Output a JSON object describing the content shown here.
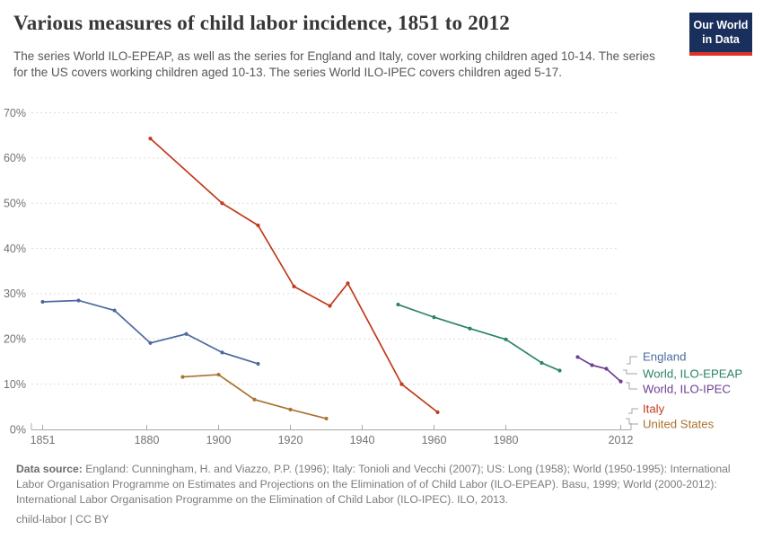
{
  "header": {
    "title": "Various measures of child labor incidence, 1851 to 2012",
    "subtitle": "The series World ILO-EPEAP, as well as the series for England and Italy, cover working children aged 10-14. The series for the US covers working children aged 10-13. The series World ILO-IPEC covers children aged 5-17."
  },
  "logo": {
    "line1": "Our World",
    "line2": "in Data",
    "bg_color": "#1A305C",
    "accent_color": "#E0322B"
  },
  "footer": {
    "source_label": "Data source:",
    "source_text": " England: Cunningham, H. and Viazzo, P.P. (1996); Italy: Tonioli and Vecchi (2007); US: Long (1958); World (1950-1995): International Labor Organisation Programme on Estimates and Projections on the Elimination of of Child Labor (ILO-EPEAP). Basu, 1999; World (2000-2012): International Labor Organisation Programme on the Elimination of Child Labor (ILO-IPEC). ILO, 2013.",
    "license": "child-labor | CC BY"
  },
  "chart_data": {
    "type": "line",
    "title": "Various measures of child labor incidence, 1851 to 2012",
    "xlabel": "",
    "ylabel": "",
    "xlim": [
      1848,
      2015
    ],
    "ylim": [
      0,
      70
    ],
    "grid": "horizontal-dashed",
    "legend_position": "right",
    "x_ticks": [
      1851,
      1880,
      1900,
      1920,
      1940,
      1960,
      1980,
      2012
    ],
    "y_ticks": [
      "0%",
      "10%",
      "20%",
      "30%",
      "40%",
      "50%",
      "60%",
      "70%"
    ],
    "axis_color": "#a8a8a8",
    "grid_color": "#dddddd",
    "tick_label_color": "#737373",
    "series": [
      {
        "name": "England",
        "color": "#4D6A9D",
        "points": [
          [
            1851,
            28.2
          ],
          [
            1861,
            28.5
          ],
          [
            1871,
            26.3
          ],
          [
            1881,
            19.1
          ],
          [
            1891,
            21.1
          ],
          [
            1901,
            17.0
          ],
          [
            1911,
            14.5
          ]
        ]
      },
      {
        "name": "World, ILO-EPEAP",
        "color": "#2C8465",
        "points": [
          [
            1950,
            27.6
          ],
          [
            1960,
            24.8
          ],
          [
            1970,
            22.3
          ],
          [
            1980,
            19.9
          ],
          [
            1990,
            14.7
          ],
          [
            1995,
            13.0
          ]
        ]
      },
      {
        "name": "World, ILO-IPEC",
        "color": "#6D3E91",
        "points": [
          [
            2000,
            16.0
          ],
          [
            2004,
            14.2
          ],
          [
            2008,
            13.4
          ],
          [
            2012,
            10.6
          ]
        ]
      },
      {
        "name": "Italy",
        "color": "#C03A1C",
        "points": [
          [
            1881,
            64.3
          ],
          [
            1901,
            50.0
          ],
          [
            1911,
            45.1
          ],
          [
            1921,
            31.6
          ],
          [
            1931,
            27.3
          ],
          [
            1936,
            32.3
          ],
          [
            1951,
            10.0
          ],
          [
            1961,
            3.8
          ]
        ]
      },
      {
        "name": "United States",
        "color": "#A9732E",
        "points": [
          [
            1890,
            11.6
          ],
          [
            1900,
            12.1
          ],
          [
            1910,
            6.6
          ],
          [
            1920,
            4.4
          ],
          [
            1930,
            2.4
          ]
        ]
      }
    ]
  }
}
